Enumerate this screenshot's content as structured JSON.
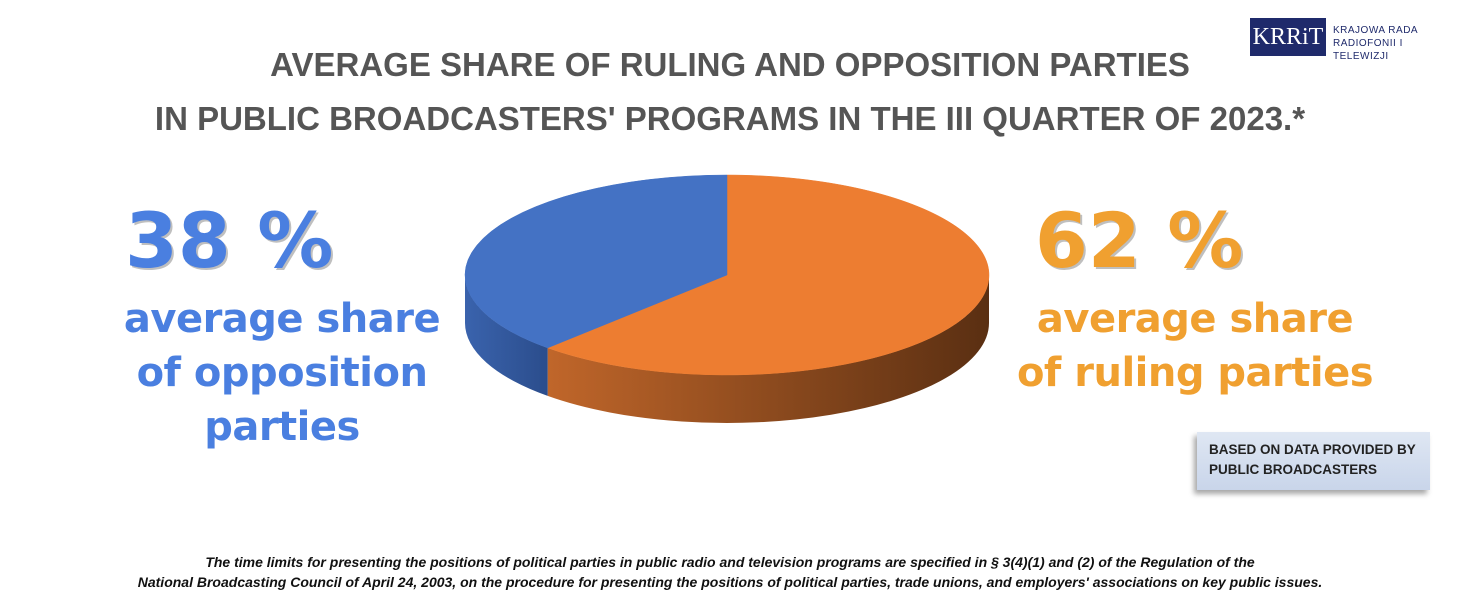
{
  "logo": {
    "mark": "KRRiT",
    "lines": [
      "KRAJOWA RADA",
      "RADIOFONII I TELEWIZJI"
    ]
  },
  "chart_data": {
    "type": "pie",
    "title": [
      "AVERAGE SHARE OF RULING AND OPPOSITION PARTIES",
      "IN PUBLIC BROADCASTERS' PROGRAMS IN THE III QUARTER OF 2023.*"
    ],
    "categories": [
      "average share of opposition parties",
      "average share of ruling parties"
    ],
    "values": [
      38,
      62
    ],
    "value_labels": [
      "38 %",
      "62 %"
    ],
    "colors": [
      "#4472c4",
      "#ed7d31"
    ],
    "label_colors": [
      "#4a7fe0",
      "#f0a030"
    ],
    "note": "BASED ON DATA PROVIDED BY PUBLIC BROADCASTERS",
    "footnote": [
      "The time limits for presenting the positions of political parties in public radio and television programs are specified in § 3(4)(1) and (2) of the Regulation of the",
      "National Broadcasting Council of April 24, 2003, on the procedure for presenting the positions of political parties, trade unions, and employers' associations on key public issues."
    ]
  }
}
